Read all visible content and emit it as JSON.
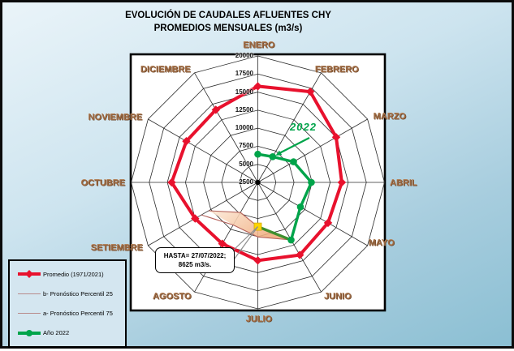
{
  "title": {
    "line1": "EVOLUCIÓN DE CAUDALES AFLUENTES CHY",
    "line2": "PROMEDIOS MENSUALES (m3/s)"
  },
  "chart_data": {
    "type": "radar",
    "categories": [
      "ENERO",
      "FEBRERO",
      "MARZO",
      "ABRIL",
      "MAYO",
      "JUNIO",
      "JULIO",
      "AGOSTO",
      "SETIEMBRE",
      "OCTUBRE",
      "NOVIEMBRE",
      "DICIEMBRE"
    ],
    "radial_axis": {
      "min": 2500,
      "max": 20000,
      "step": 2500,
      "tick_labels": [
        "20000",
        "17500",
        "15000",
        "12500",
        "10000",
        "7500",
        "5000",
        "2500"
      ],
      "grid": "on",
      "unit": "m3/s"
    },
    "series": [
      {
        "name": "Promedio (1971/2021)",
        "color": "#e8112d",
        "marker": "diamond",
        "closed": true,
        "values": [
          15800,
          17000,
          15000,
          14100,
          13700,
          14100,
          13300,
          12300,
          12500,
          14400,
          13900,
          14100
        ]
      },
      {
        "name": "Año 2022",
        "color": "#00a44a",
        "marker": "circle",
        "closed": false,
        "values": [
          6400,
          6600,
          8200,
          9900,
          9300,
          11700,
          null,
          null,
          null,
          null,
          null,
          null
        ]
      }
    ],
    "partial_point": {
      "month": "JULIO",
      "value": 8625,
      "marker": "square",
      "color": "#ffd400",
      "connector_color": "#3f8f2f"
    },
    "forecast_band": {
      "months": [
        "JUNIO",
        "JULIO",
        "AGOSTO",
        "SETIEMBRE"
      ],
      "percentil_25": [
        11700,
        8625,
        7300,
        10350
      ],
      "percentil_75": [
        11700,
        10050,
        9300,
        11500
      ],
      "fill_color_left": "#fcead8",
      "fill_color_right": "#efa877",
      "line_color": "#b4615a"
    },
    "title": "EVOLUCIÓN DE CAUDALES AFLUENTES CHY — PROMEDIOS MENSUALES (m3/s)",
    "legend_position": "bottom-left"
  },
  "annotations": {
    "year_label": "2022",
    "hasta_line1": "HASTA= 27/07/2022;",
    "hasta_line2": "8625 m3/s."
  },
  "legend": {
    "items": [
      {
        "label": "Promedio (1971/2021)",
        "swatch": "red-diamond",
        "color": "#e8112d"
      },
      {
        "label": "b- Pronóstico Percentil 25",
        "swatch": "rose-line",
        "color": "#b98c8c"
      },
      {
        "label": "a- Pronóstico Percentil 75",
        "swatch": "rose-line",
        "color": "#b98c8c"
      },
      {
        "label": "Año 2022",
        "swatch": "green-circle",
        "color": "#00a44a"
      }
    ]
  },
  "colors": {
    "month_label": "#9a6843",
    "grid": "#2b2b2b",
    "plot_background": "#ffffff"
  }
}
